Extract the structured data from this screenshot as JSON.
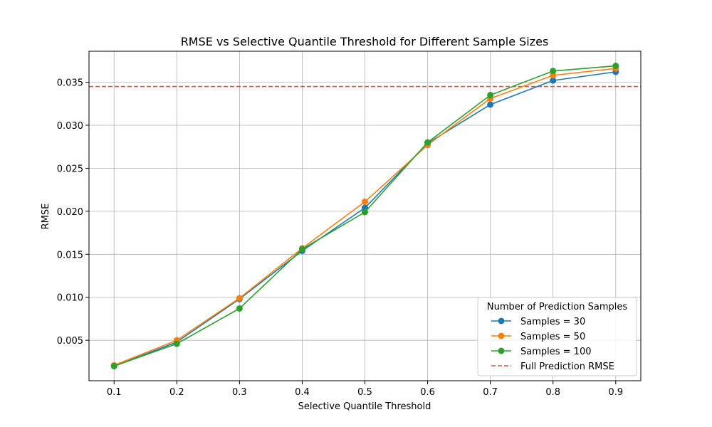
{
  "chart_data": {
    "type": "line",
    "title": "RMSE vs Selective Quantile Threshold for Different Sample Sizes",
    "xlabel": "Selective Quantile Threshold",
    "ylabel": "RMSE",
    "x": [
      0.1,
      0.2,
      0.3,
      0.4,
      0.5,
      0.6,
      0.7,
      0.8,
      0.9
    ],
    "xticks": [
      "0.1",
      "0.2",
      "0.3",
      "0.4",
      "0.5",
      "0.6",
      "0.7",
      "0.8",
      "0.9"
    ],
    "yticks": [
      "0.005",
      "0.010",
      "0.015",
      "0.020",
      "0.025",
      "0.030",
      "0.035"
    ],
    "ytick_values": [
      0.005,
      0.01,
      0.015,
      0.02,
      0.025,
      0.03,
      0.035
    ],
    "xlim": [
      0.06,
      0.94
    ],
    "ylim": [
      0.0003,
      0.0386
    ],
    "grid": true,
    "legend_title": "Number of Prediction Samples",
    "legend_position": "lower-right",
    "series": [
      {
        "name": "Samples = 30",
        "color": "#1f77b4",
        "marker": "circle",
        "values": [
          0.002,
          0.0048,
          0.0098,
          0.0154,
          0.0204,
          0.0279,
          0.0324,
          0.0352,
          0.0362
        ]
      },
      {
        "name": "Samples = 50",
        "color": "#ff7f0e",
        "marker": "circle",
        "values": [
          0.0021,
          0.005,
          0.0099,
          0.0157,
          0.0211,
          0.0277,
          0.0331,
          0.0358,
          0.0366
        ]
      },
      {
        "name": "Samples = 100",
        "color": "#2ca02c",
        "marker": "circle",
        "values": [
          0.002,
          0.0046,
          0.0087,
          0.0156,
          0.0199,
          0.028,
          0.0335,
          0.0363,
          0.0369
        ]
      }
    ],
    "reference_line": {
      "name": "Full Prediction RMSE",
      "value": 0.0345,
      "color": "#d62728",
      "style": "dashed"
    }
  }
}
